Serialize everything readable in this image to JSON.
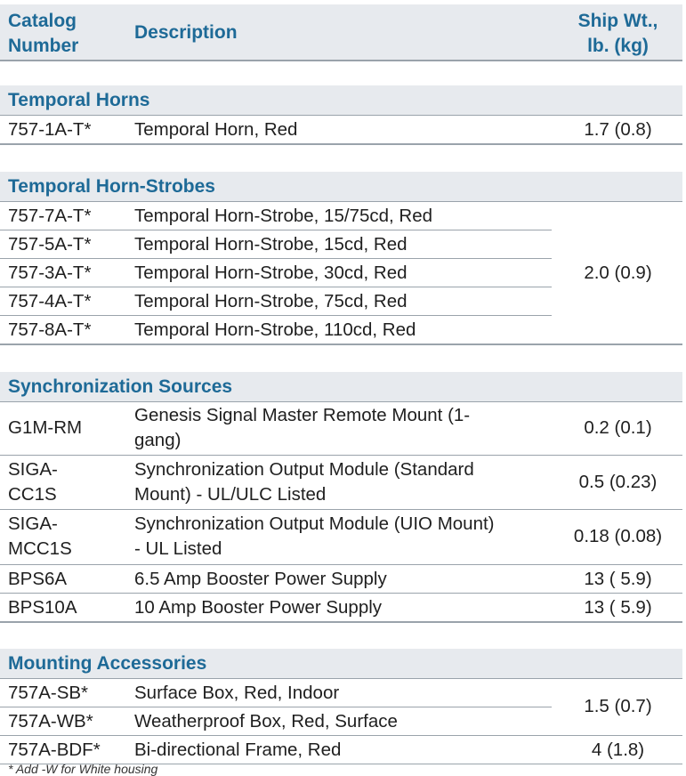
{
  "header": {
    "catalog": "Catalog",
    "number": "Number",
    "description": "Description",
    "weight_line1": "Ship Wt.,",
    "weight_line2": "lb. (kg)"
  },
  "sections": {
    "horns": {
      "title": "Temporal Horns",
      "rows": [
        {
          "cat": "757-1A-T*",
          "desc": "Temporal Horn, Red"
        }
      ],
      "weight": "1.7 (0.8)"
    },
    "strobes": {
      "title": "Temporal Horn-Strobes",
      "rows": [
        {
          "cat": "757-7A-T*",
          "desc": "Temporal Horn-Strobe, 15/75cd, Red"
        },
        {
          "cat": "757-5A-T*",
          "desc": "Temporal Horn-Strobe, 15cd, Red"
        },
        {
          "cat": "757-3A-T*",
          "desc": "Temporal Horn-Strobe, 30cd, Red"
        },
        {
          "cat": "757-4A-T*",
          "desc": "Temporal Horn-Strobe, 75cd, Red"
        },
        {
          "cat": "757-8A-T*",
          "desc": "Temporal Horn-Strobe, 110cd, Red"
        }
      ],
      "weight": "2.0 (0.9)"
    },
    "sync": {
      "title": "Synchronization Sources",
      "rows": [
        {
          "cat": "G1M-RM",
          "desc1": "Genesis Signal Master Remote Mount (1-",
          "desc2": "gang)",
          "weight": "0.2  (0.1)"
        },
        {
          "cat1": "SIGA-",
          "cat2": "CC1S",
          "desc1": "Synchronization Output Module (Standard",
          "desc2": "Mount) - UL/ULC Listed",
          "weight": "0.5  (0.23)"
        },
        {
          "cat1": "SIGA-",
          "cat2": "MCC1S",
          "desc1": "Synchronization Output Module (UIO Mount)",
          "desc2": "- UL Listed",
          "weight": "0.18  (0.08)"
        },
        {
          "cat": "BPS6A",
          "desc": "6.5 Amp Booster Power Supply",
          "weight": "13 ( 5.9)"
        },
        {
          "cat": "BPS10A",
          "desc": "10 Amp Booster Power Supply",
          "weight": "13 ( 5.9)"
        }
      ]
    },
    "mounting": {
      "title": "Mounting Accessories",
      "rows": [
        {
          "cat": "757A-SB*",
          "desc": "Surface Box, Red, Indoor"
        },
        {
          "cat": "757A-WB*",
          "desc": "Weatherproof Box, Red, Surface"
        },
        {
          "cat": "757A-BDF*",
          "desc": "Bi-directional Frame, Red"
        }
      ],
      "weight_boxes": "1.5 (0.7)",
      "weight_frame": "4 (1.8)"
    }
  },
  "footnote": "* Add -W for White housing"
}
